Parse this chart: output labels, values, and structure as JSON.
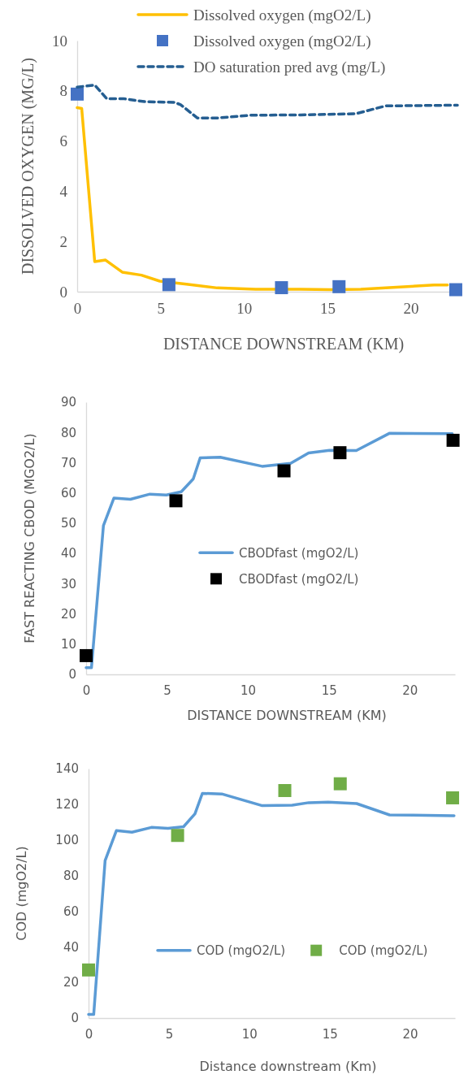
{
  "chart_data": [
    {
      "type": "line",
      "xlabel": "DISTANCE DOWNSTREAM (KM)",
      "ylabel": "DISSOLVED OXYGEN (MG/L)",
      "xlim": [
        0,
        22.8
      ],
      "xticks": [
        0,
        5,
        10,
        15,
        20
      ],
      "ylim": [
        0,
        10
      ],
      "yticks": [
        0,
        2,
        4,
        6,
        8,
        10
      ],
      "grid": false,
      "legend": "top right",
      "series": [
        {
          "name": "Dissolved oxygen (mgO2/L)",
          "type": "line",
          "color": "#ffc000",
          "x": [
            0,
            0.27,
            1.05,
            1.7,
            2.7,
            3.85,
            4.95,
            6.55,
            8.4,
            10.7,
            13.4,
            15.2,
            17,
            18.5,
            21.4,
            22.2
          ],
          "values": [
            7.33,
            7.3,
            1.2,
            1.26,
            0.78,
            0.66,
            0.42,
            0.3,
            0.15,
            0.1,
            0.1,
            0.08,
            0.1,
            0.15,
            0.27,
            0.27
          ]
        },
        {
          "name": "Dissolved oxygen (mgO2/L)",
          "type": "scatter",
          "marker": "square",
          "color": "#4472c4",
          "x": [
            0,
            5.5,
            12.25,
            15.7,
            22.7
          ],
          "values": [
            7.87,
            0.28,
            0.16,
            0.2,
            0.08
          ]
        },
        {
          "name": "DO saturation pred avg (mg/L)",
          "type": "line",
          "line_style": "dashed",
          "color": "#255e91",
          "x": [
            0,
            1.05,
            1.77,
            2.77,
            4.03,
            5.84,
            6.2,
            7.2,
            8.4,
            10.4,
            13.4,
            16.7,
            18.5,
            22.8
          ],
          "values": [
            8.15,
            8.23,
            7.69,
            7.69,
            7.57,
            7.54,
            7.45,
            6.92,
            6.92,
            7.03,
            7.04,
            7.09,
            7.4,
            7.43
          ]
        }
      ]
    },
    {
      "type": "line",
      "xlabel": "DISTANCE DOWNSTREAM (KM)",
      "ylabel": "FAST REACTING CBOD (MGO2/L)",
      "xlim": [
        0,
        22.8
      ],
      "xticks": [
        0,
        5,
        10,
        15,
        20
      ],
      "ylim": [
        0,
        90
      ],
      "yticks": [
        0,
        10,
        20,
        30,
        40,
        50,
        60,
        70,
        80,
        90
      ],
      "grid": false,
      "legend": "right",
      "series": [
        {
          "name": "CBODfast (mgO2/L)",
          "type": "line",
          "color": "#5b9bd5",
          "x": [
            0,
            0.33,
            1.07,
            1.72,
            2.74,
            3.94,
            4.96,
            5.88,
            6.62,
            7.05,
            8.29,
            10.88,
            12.64,
            13.75,
            15.04,
            16.7,
            18.74,
            22.63
          ],
          "values": [
            2.2,
            2.2,
            49.2,
            58.3,
            57.9,
            59.6,
            59.3,
            60.4,
            64.6,
            71.6,
            71.8,
            68.8,
            69.8,
            73.2,
            74.1,
            74,
            79.7,
            79.6
          ]
        },
        {
          "name": "CBODfast (mgO2/L)",
          "type": "scatter",
          "marker": "square",
          "color": "#000000",
          "x": [
            0,
            5.55,
            12.23,
            15.69,
            22.68
          ],
          "values": [
            6.2,
            57.4,
            67.3,
            73.3,
            77.4
          ]
        }
      ]
    },
    {
      "type": "line",
      "xlabel": "Distance downstream (Km)",
      "ylabel": "COD (mgO2/L)",
      "xlim": [
        0,
        22.8
      ],
      "xticks": [
        0,
        5,
        10,
        15,
        20
      ],
      "ylim": [
        0,
        140
      ],
      "yticks": [
        0,
        20,
        40,
        60,
        80,
        100,
        120,
        140
      ],
      "grid": false,
      "legend": "bottom right",
      "series": [
        {
          "name": "COD (mgO2/L)",
          "type": "line",
          "color": "#5b9bd5",
          "x": [
            0,
            0.32,
            1.03,
            1.73,
            2.7,
            3.91,
            4.94,
            5.91,
            6.62,
            7.08,
            8.29,
            10.81,
            12.67,
            13.7,
            14.91,
            16.68,
            18.73,
            22.74
          ],
          "values": [
            2,
            2,
            88.4,
            105.2,
            104.3,
            107,
            106.5,
            107.4,
            114.6,
            126.1,
            125.8,
            119.2,
            119.5,
            120.9,
            121.2,
            120.4,
            114,
            113.6
          ]
        },
        {
          "name": "COD (mgO2/L)",
          "type": "scatter",
          "marker": "square",
          "color": "#70ad47",
          "x": [
            0,
            5.54,
            12.21,
            15.66,
            22.65
          ],
          "values": [
            27,
            102.5,
            127.7,
            131.5,
            123.6
          ]
        }
      ]
    }
  ]
}
